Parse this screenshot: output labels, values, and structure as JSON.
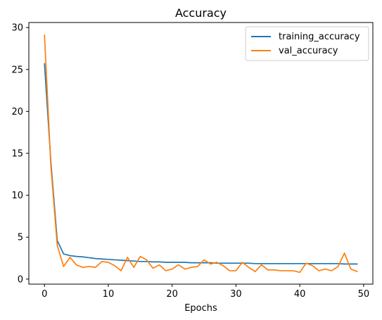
{
  "chart_data": {
    "type": "line",
    "title": "Accuracy",
    "xlabel": "Epochs",
    "ylabel": "",
    "xlim": [
      -2.45,
      51.45
    ],
    "ylim": [
      -0.6,
      30.6
    ],
    "xticks": [
      0,
      10,
      20,
      30,
      40,
      50
    ],
    "yticks": [
      0,
      5,
      10,
      15,
      20,
      25,
      30
    ],
    "grid": false,
    "legend_position": "upper-right",
    "x": [
      0,
      1,
      2,
      3,
      4,
      5,
      6,
      7,
      8,
      9,
      10,
      11,
      12,
      13,
      14,
      15,
      16,
      17,
      18,
      19,
      20,
      21,
      22,
      23,
      24,
      25,
      26,
      27,
      28,
      29,
      30,
      31,
      32,
      33,
      34,
      35,
      36,
      37,
      38,
      39,
      40,
      41,
      42,
      43,
      44,
      45,
      46,
      47,
      48,
      49
    ],
    "series": [
      {
        "name": "training_accuracy",
        "color": "#1f77b4",
        "values": [
          25.7,
          14.0,
          4.6,
          3.0,
          2.8,
          2.7,
          2.65,
          2.55,
          2.45,
          2.4,
          2.35,
          2.3,
          2.25,
          2.2,
          2.15,
          2.1,
          2.1,
          2.05,
          2.05,
          2.0,
          2.0,
          2.0,
          2.0,
          1.95,
          1.95,
          1.95,
          1.95,
          1.9,
          1.9,
          1.9,
          1.9,
          1.9,
          1.9,
          1.85,
          1.85,
          1.85,
          1.85,
          1.85,
          1.85,
          1.85,
          1.85,
          1.85,
          1.85,
          1.85,
          1.85,
          1.85,
          1.85,
          1.8,
          1.8,
          1.8
        ]
      },
      {
        "name": "val_accuracy",
        "color": "#ff7f0e",
        "values": [
          29.1,
          13.5,
          4.0,
          1.5,
          2.6,
          1.7,
          1.4,
          1.5,
          1.4,
          2.1,
          2.0,
          1.6,
          1.0,
          2.6,
          1.4,
          2.7,
          2.3,
          1.3,
          1.7,
          1.0,
          1.2,
          1.7,
          1.2,
          1.4,
          1.5,
          2.3,
          1.8,
          2.0,
          1.6,
          1.0,
          1.0,
          2.0,
          1.4,
          0.9,
          1.7,
          1.1,
          1.1,
          1.0,
          1.0,
          1.0,
          0.8,
          1.9,
          1.6,
          1.0,
          1.2,
          1.0,
          1.5,
          3.1,
          1.2,
          0.9
        ]
      }
    ]
  }
}
